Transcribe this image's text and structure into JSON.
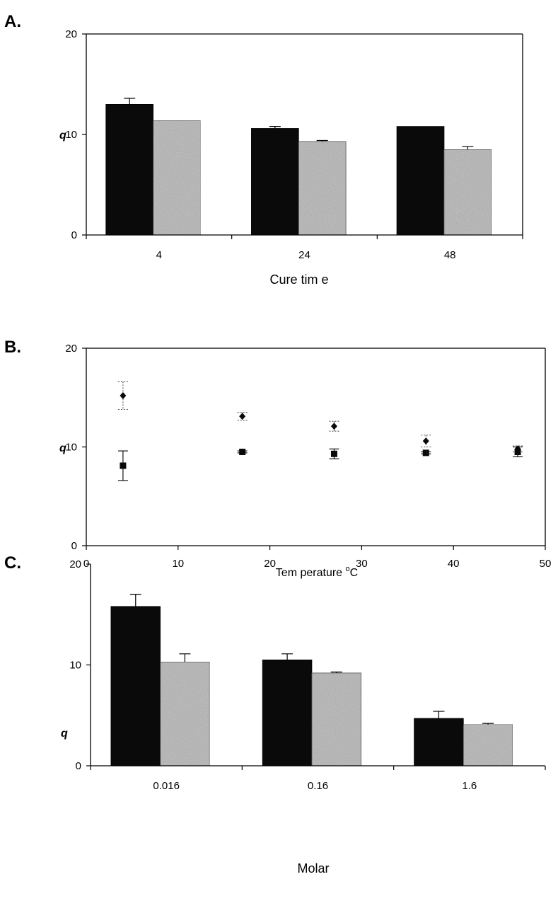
{
  "chart_data": [
    {
      "panel": "A.",
      "type": "bar",
      "categories": [
        "4",
        "24",
        "48"
      ],
      "series": [
        {
          "values": [
            13.0,
            10.6,
            10.8
          ],
          "errors": [
            0.6,
            0.2,
            0.0
          ],
          "color": "#0a0a0a"
        },
        {
          "values": [
            11.4,
            9.3,
            8.5
          ],
          "errors": [
            0.0,
            0.1,
            0.3
          ],
          "color": "#c2c2c2"
        }
      ],
      "xlabel": "Cure tim e",
      "ylabel": "q",
      "ylim": [
        0,
        20
      ],
      "yticks": [
        0,
        10,
        20
      ],
      "grid": false
    },
    {
      "panel": "B.",
      "type": "scatter",
      "series": [
        {
          "marker": "diamond",
          "color": "#0a0a0a",
          "x": [
            4,
            17,
            27,
            37,
            47
          ],
          "y": [
            15.2,
            13.1,
            12.1,
            10.6,
            9.8
          ],
          "errors": [
            1.4,
            0.4,
            0.5,
            0.6,
            0.3
          ]
        },
        {
          "marker": "square",
          "color": "#0a0a0a",
          "x": [
            4,
            17,
            27,
            37,
            47
          ],
          "y": [
            8.1,
            9.5,
            9.3,
            9.4,
            9.5
          ],
          "errors": [
            1.5,
            0.1,
            0.5,
            0.1,
            0.5
          ]
        }
      ],
      "xlabel": "Tem perature ",
      "xlabel_sup": "o",
      "xlabel_tail": "C",
      "ylabel": "q",
      "xlim": [
        0,
        50
      ],
      "xticks": [
        0,
        10,
        20,
        30,
        40,
        50
      ],
      "ylim": [
        0,
        20
      ],
      "yticks": [
        0,
        10,
        20
      ],
      "grid": false
    },
    {
      "panel": "C.",
      "type": "bar",
      "categories": [
        "0.016",
        "0.16",
        "1.6"
      ],
      "series": [
        {
          "values": [
            15.8,
            10.5,
            4.7
          ],
          "errors": [
            1.2,
            0.6,
            0.7
          ],
          "color": "#0a0a0a"
        },
        {
          "values": [
            10.3,
            9.2,
            4.1
          ],
          "errors": [
            0.8,
            0.1,
            0.1
          ],
          "color": "#c2c2c2"
        }
      ],
      "xlabel": "Molar",
      "ylabel": "q",
      "ylim": [
        0,
        20
      ],
      "yticks": [
        0,
        10,
        20
      ],
      "grid": false
    }
  ]
}
